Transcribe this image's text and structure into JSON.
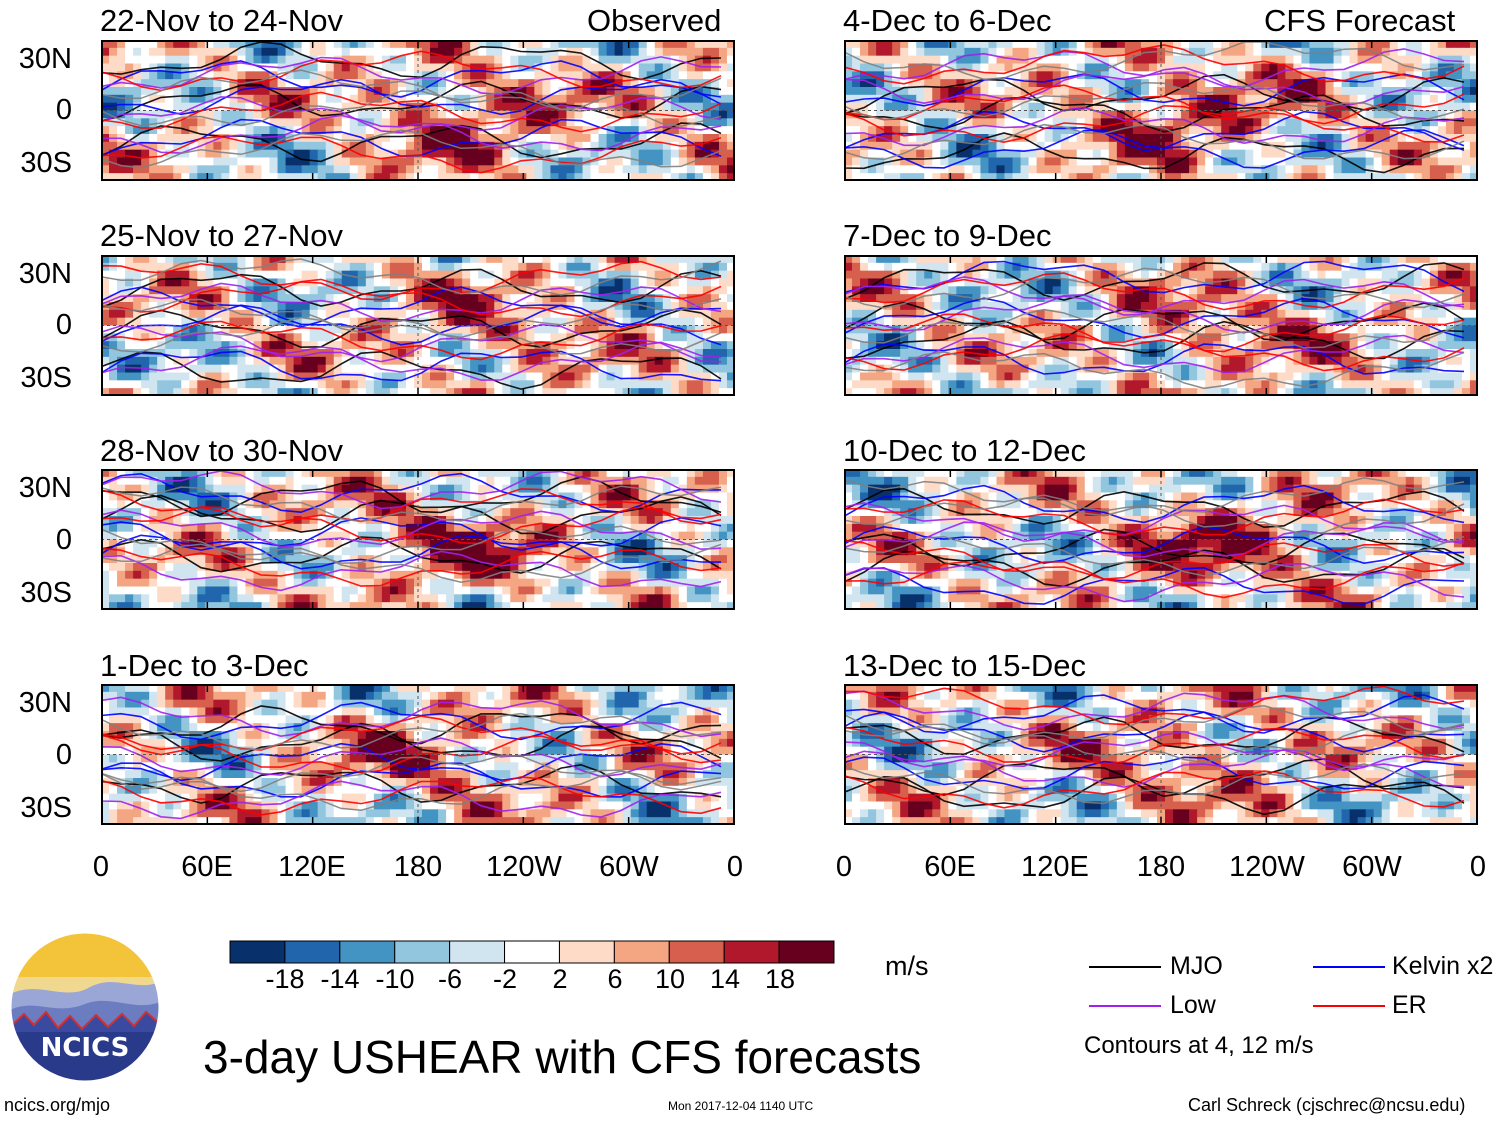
{
  "chart_data": {
    "type": "heatmap",
    "title": "3-day USHEAR with CFS forecasts",
    "units": "m/s",
    "column_headers": [
      "Observed",
      "CFS Forecast"
    ],
    "y_ticks": [
      "30N",
      "0",
      "30S"
    ],
    "x_ticks": [
      "0",
      "60E",
      "120E",
      "180",
      "120W",
      "60W",
      "0"
    ],
    "panels": [
      {
        "id": "obs1",
        "column": "Observed",
        "period": "22-Nov to 24-Nov"
      },
      {
        "id": "obs2",
        "column": "Observed",
        "period": "25-Nov to 27-Nov"
      },
      {
        "id": "obs3",
        "column": "Observed",
        "period": "28-Nov to 30-Nov"
      },
      {
        "id": "obs4",
        "column": "Observed",
        "period": "1-Dec to 3-Dec"
      },
      {
        "id": "fc1",
        "column": "CFS Forecast",
        "period": "4-Dec to 6-Dec"
      },
      {
        "id": "fc2",
        "column": "CFS Forecast",
        "period": "7-Dec to 9-Dec"
      },
      {
        "id": "fc3",
        "column": "CFS Forecast",
        "period": "10-Dec to 12-Dec"
      },
      {
        "id": "fc4",
        "column": "CFS Forecast",
        "period": "13-Dec to 15-Dec"
      }
    ],
    "colorbar": {
      "labels": [
        "-18",
        "-14",
        "-10",
        "-6",
        "-2",
        "2",
        "6",
        "10",
        "14",
        "18"
      ],
      "colors": [
        "#08306b",
        "#2166ac",
        "#4393c3",
        "#92c5de",
        "#d1e5f0",
        "#ffffff",
        "#fddbc7",
        "#f4a582",
        "#d6604d",
        "#b2182b",
        "#67001f"
      ]
    },
    "legend": {
      "items": [
        {
          "label": "MJO",
          "color": "#000000"
        },
        {
          "label": "Kelvin x2",
          "color": "#0000ff"
        },
        {
          "label": "Low",
          "color": "#a020f0"
        },
        {
          "label": "ER",
          "color": "#ff0000"
        }
      ],
      "note": "Contours at 4, 12 m/s"
    }
  },
  "footer": {
    "left": "ncics.org/mjo",
    "center": "Mon 2017-12-04 1140 UTC",
    "right": "Carl Schreck (cjschrec@ncsu.edu)"
  },
  "logo": {
    "text": "NCICS"
  }
}
